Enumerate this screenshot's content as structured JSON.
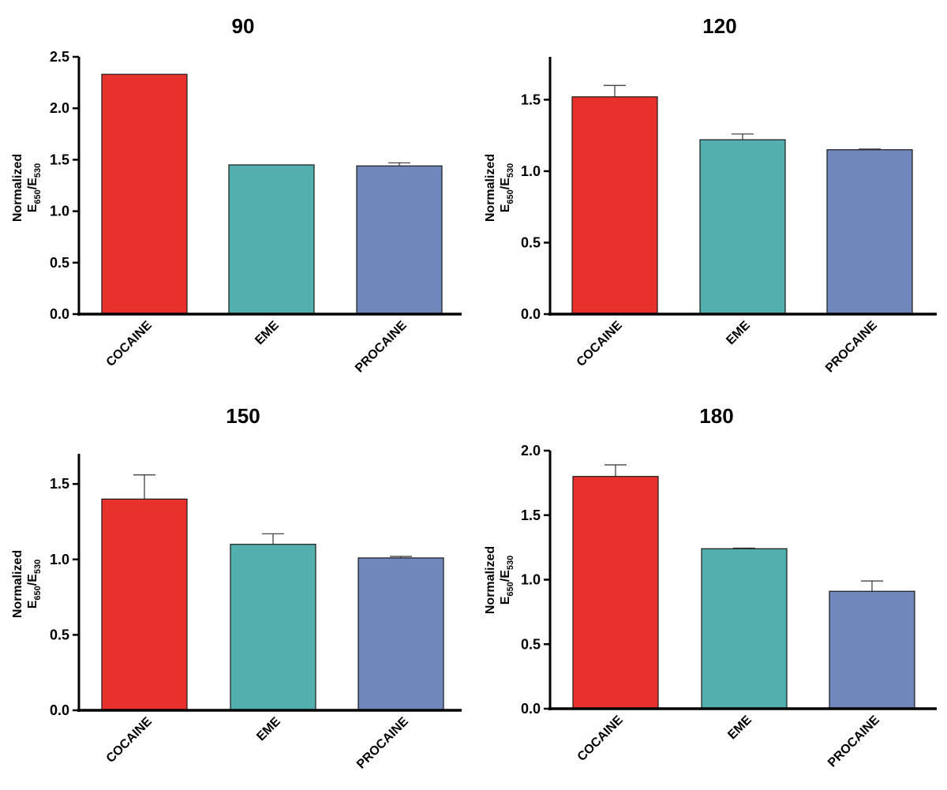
{
  "chart_data": [
    {
      "type": "bar",
      "title": "90",
      "categories": [
        "COCAINE",
        "EME",
        "PROCAINE"
      ],
      "values": [
        2.33,
        1.45,
        1.44
      ],
      "errors": [
        0.0,
        0.0,
        0.03
      ],
      "colors": [
        "#e8302c",
        "#52afad",
        "#6f87ba"
      ],
      "ylabel_line1": "Normalized",
      "ylabel_main": "E",
      "ylabel_sub1": "650",
      "ylabel_sep": "/E",
      "ylabel_sub2": "530",
      "ylim": [
        0,
        2.5
      ],
      "yticks": [
        0.0,
        0.5,
        1.0,
        1.5,
        2.0,
        2.5
      ],
      "ytick_labels": [
        "0.0",
        "0.5",
        "1.0",
        "1.5",
        "2.0",
        "2.5"
      ]
    },
    {
      "type": "bar",
      "title": "120",
      "categories": [
        "COCAINE",
        "EME",
        "PROCAINE"
      ],
      "values": [
        1.52,
        1.22,
        1.15
      ],
      "errors": [
        0.08,
        0.04,
        0.005
      ],
      "colors": [
        "#e8302c",
        "#52afad",
        "#6f87ba"
      ],
      "ylabel_line1": "Normalized",
      "ylabel_main": "E",
      "ylabel_sub1": "650",
      "ylabel_sep": "/E",
      "ylabel_sub2": "530",
      "ylim": [
        0,
        1.8
      ],
      "yticks": [
        0.0,
        0.5,
        1.0,
        1.5
      ],
      "ytick_labels": [
        "0.0",
        "0.5",
        "1.0",
        "1.5"
      ]
    },
    {
      "type": "bar",
      "title": "150",
      "categories": [
        "COCAINE",
        "EME",
        "PROCAINE"
      ],
      "values": [
        1.4,
        1.1,
        1.01
      ],
      "errors": [
        0.16,
        0.07,
        0.01
      ],
      "colors": [
        "#e8302c",
        "#52afad",
        "#6f87ba"
      ],
      "ylabel_line1": "Normalized",
      "ylabel_main": "E",
      "ylabel_sub1": "650",
      "ylabel_sep": "/E",
      "ylabel_sub2": "530",
      "ylim": [
        0,
        1.7
      ],
      "yticks": [
        0.0,
        0.5,
        1.0,
        1.5
      ],
      "ytick_labels": [
        "0.0",
        "0.5",
        "1.0",
        "1.5"
      ]
    },
    {
      "type": "bar",
      "title": "180",
      "categories": [
        "COCAINE",
        "EME",
        "PROCAINE"
      ],
      "values": [
        1.8,
        1.24,
        0.91
      ],
      "errors": [
        0.09,
        0.005,
        0.08
      ],
      "colors": [
        "#e8302c",
        "#52afad",
        "#6f87ba"
      ],
      "ylabel_line1": "Normalized",
      "ylabel_main": "E",
      "ylabel_sub1": "650",
      "ylabel_sep": "/E",
      "ylabel_sub2": "530",
      "ylim": [
        0,
        2.0
      ],
      "yticks": [
        0.0,
        0.5,
        1.0,
        1.5,
        2.0
      ],
      "ytick_labels": [
        "0.0",
        "0.5",
        "1.0",
        "1.5",
        "2.0"
      ]
    }
  ]
}
